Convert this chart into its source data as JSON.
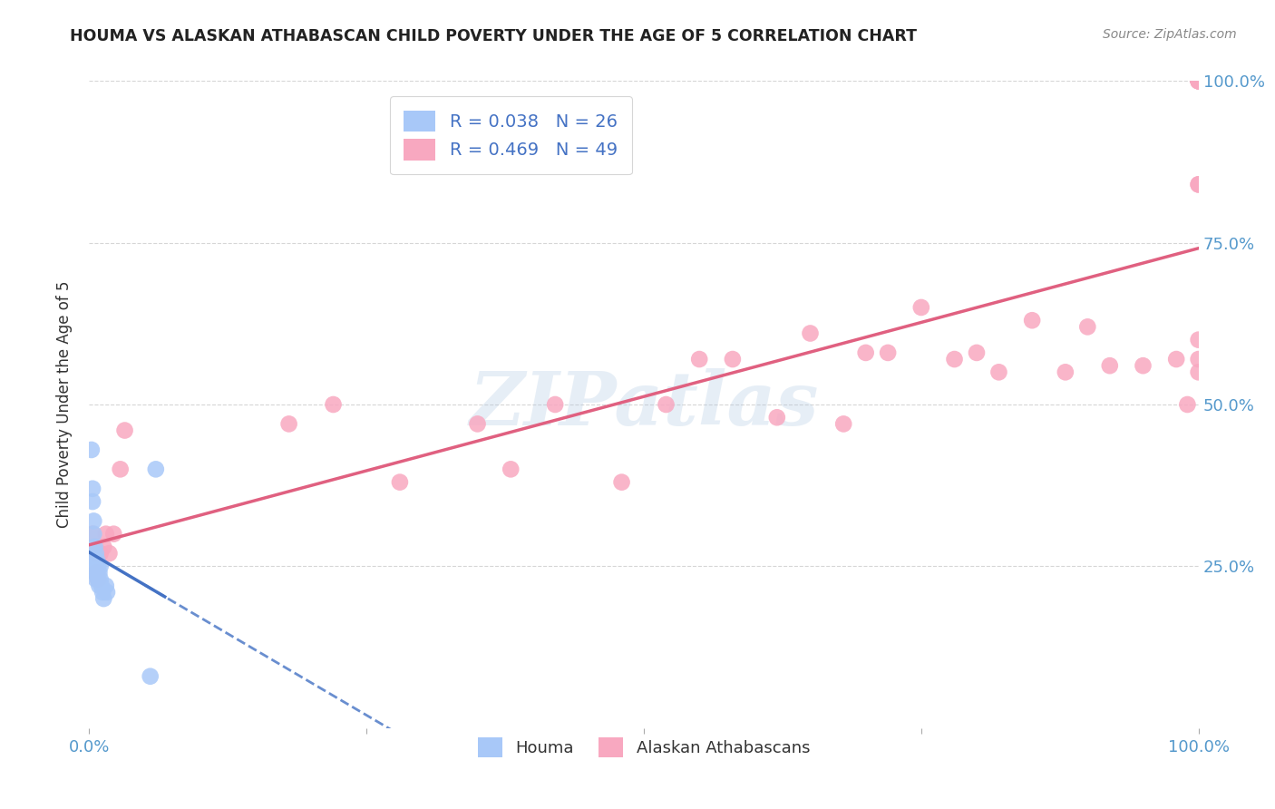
{
  "title": "HOUMA VS ALASKAN ATHABASCAN CHILD POVERTY UNDER THE AGE OF 5 CORRELATION CHART",
  "source": "Source: ZipAtlas.com",
  "ylabel": "Child Poverty Under the Age of 5",
  "houma_R": 0.038,
  "houma_N": 26,
  "athabascan_R": 0.469,
  "athabascan_N": 49,
  "houma_color": "#a8c8f8",
  "athabascan_color": "#f8a8c0",
  "houma_line_color": "#4472c4",
  "athabascan_line_color": "#e06080",
  "legend_label_houma": "Houma",
  "legend_label_athabascan": "Alaskan Athabascans",
  "watermark": "ZIPatlas",
  "houma_x": [
    0.002,
    0.003,
    0.003,
    0.004,
    0.004,
    0.005,
    0.005,
    0.005,
    0.006,
    0.006,
    0.006,
    0.007,
    0.007,
    0.008,
    0.008,
    0.009,
    0.009,
    0.01,
    0.01,
    0.011,
    0.012,
    0.013,
    0.015,
    0.016,
    0.055,
    0.06
  ],
  "houma_y": [
    0.43,
    0.37,
    0.35,
    0.32,
    0.3,
    0.28,
    0.26,
    0.24,
    0.27,
    0.25,
    0.23,
    0.26,
    0.24,
    0.25,
    0.23,
    0.24,
    0.22,
    0.25,
    0.23,
    0.22,
    0.21,
    0.2,
    0.22,
    0.21,
    0.08,
    0.4
  ],
  "athabascan_x": [
    0.003,
    0.005,
    0.006,
    0.007,
    0.008,
    0.01,
    0.013,
    0.015,
    0.018,
    0.022,
    0.028,
    0.032,
    0.18,
    0.22,
    0.28,
    0.35,
    0.38,
    0.42,
    0.48,
    0.52,
    0.55,
    0.58,
    0.62,
    0.65,
    0.68,
    0.7,
    0.72,
    0.75,
    0.78,
    0.8,
    0.82,
    0.85,
    0.88,
    0.9,
    0.92,
    0.95,
    0.98,
    0.99,
    1.0,
    1.0,
    1.0,
    1.0,
    1.0,
    1.0,
    1.0,
    1.0,
    1.0,
    1.0,
    1.0
  ],
  "athabascan_y": [
    0.3,
    0.27,
    0.24,
    0.24,
    0.23,
    0.27,
    0.28,
    0.3,
    0.27,
    0.3,
    0.4,
    0.46,
    0.47,
    0.5,
    0.38,
    0.47,
    0.4,
    0.5,
    0.38,
    0.5,
    0.57,
    0.57,
    0.48,
    0.61,
    0.47,
    0.58,
    0.58,
    0.65,
    0.57,
    0.58,
    0.55,
    0.63,
    0.55,
    0.62,
    0.56,
    0.56,
    0.57,
    0.5,
    0.55,
    0.57,
    0.6,
    0.84,
    0.84,
    1.0,
    1.0,
    1.0,
    1.0,
    1.0,
    1.0
  ],
  "xlim": [
    0,
    1.0
  ],
  "ylim": [
    0,
    1.0
  ],
  "background_color": "#ffffff",
  "grid_color": "#cccccc"
}
